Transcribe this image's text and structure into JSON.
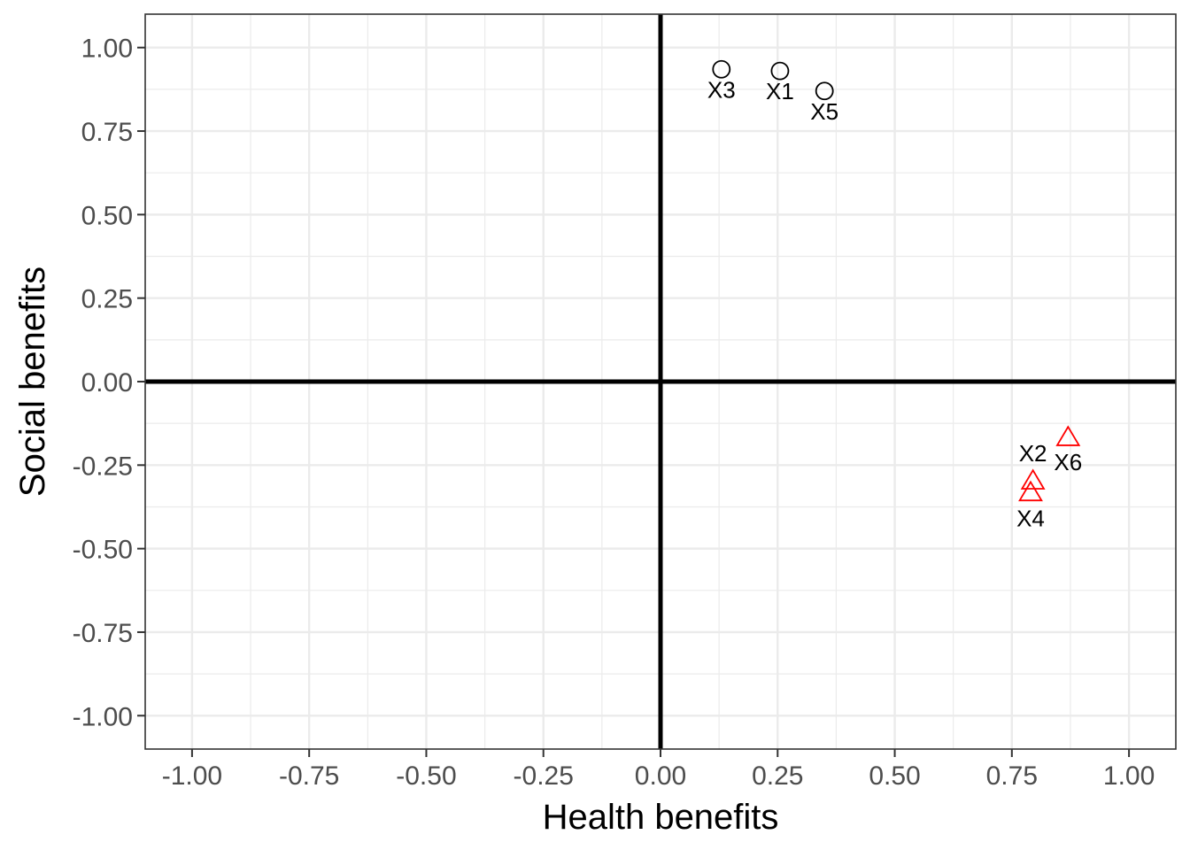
{
  "chart_data": {
    "type": "scatter",
    "title": "",
    "xlabel": "Health benefits",
    "ylabel": "Social benefits",
    "xlim": [
      -1.1,
      1.1
    ],
    "ylim": [
      -1.1,
      1.1
    ],
    "x_ticks": [
      -1.0,
      -0.75,
      -0.5,
      -0.25,
      0.0,
      0.25,
      0.5,
      0.75,
      1.0
    ],
    "x_tick_labels": [
      "-1.00",
      "-0.75",
      "-0.50",
      "-0.25",
      "0.00",
      "0.25",
      "0.50",
      "0.75",
      "1.00"
    ],
    "y_ticks": [
      1.0,
      0.75,
      0.5,
      0.25,
      0.0,
      -0.25,
      -0.5,
      -0.75,
      -1.0
    ],
    "y_tick_labels": [
      "1.00",
      "0.75",
      "0.50",
      "0.25",
      "0.00",
      "-0.25",
      "-0.50",
      "-0.75",
      "-1.00"
    ],
    "grid": true,
    "reference_lines": {
      "x": 0,
      "y": 0
    },
    "series": [
      {
        "marker": "circle",
        "color": "#000000",
        "points": [
          {
            "label": "X1",
            "x": 0.255,
            "y": 0.93
          },
          {
            "label": "X3",
            "x": 0.13,
            "y": 0.935
          },
          {
            "label": "X5",
            "x": 0.35,
            "y": 0.87
          }
        ]
      },
      {
        "marker": "triangle",
        "color": "#ff0000",
        "points": [
          {
            "label": "X2",
            "x": 0.795,
            "y": -0.3
          },
          {
            "label": "X4",
            "x": 0.79,
            "y": -0.335
          },
          {
            "label": "X6",
            "x": 0.87,
            "y": -0.17
          }
        ]
      }
    ]
  }
}
